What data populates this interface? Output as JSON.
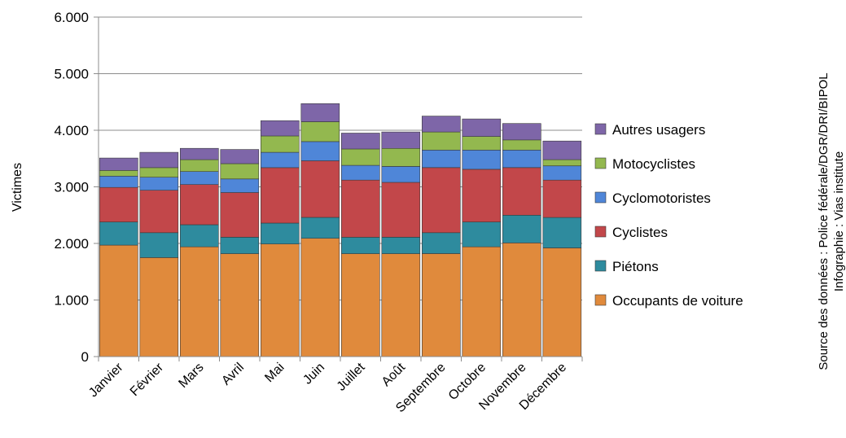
{
  "chart_data": {
    "type": "bar",
    "stacked": true,
    "categories": [
      "Janvier",
      "Février",
      "Mars",
      "Avril",
      "Mai",
      "Juin",
      "Juillet",
      "Août",
      "Septembre",
      "Octobre",
      "Novembre",
      "Décembre"
    ],
    "series": [
      {
        "name": "Occupants de voiture",
        "color": "#E08A3C",
        "values": [
          1970,
          1750,
          1940,
          1820,
          1990,
          2090,
          1820,
          1820,
          1820,
          1940,
          2010,
          1920
        ]
      },
      {
        "name": "Piétons",
        "color": "#2E8B9E",
        "values": [
          410,
          440,
          390,
          290,
          370,
          370,
          290,
          290,
          370,
          440,
          490,
          540
        ]
      },
      {
        "name": "Cyclistes",
        "color": "#C2474A",
        "values": [
          610,
          750,
          710,
          790,
          980,
          1000,
          1010,
          970,
          1150,
          930,
          840,
          660
        ]
      },
      {
        "name": "Cyclomotoristes",
        "color": "#4F86D8",
        "values": [
          200,
          230,
          230,
          240,
          270,
          340,
          260,
          280,
          310,
          340,
          310,
          250
        ]
      },
      {
        "name": "Motocyclistes",
        "color": "#93B84F",
        "values": [
          100,
          170,
          210,
          270,
          290,
          350,
          290,
          320,
          320,
          240,
          180,
          110
        ]
      },
      {
        "name": "Autres usagers",
        "color": "#7E66A8",
        "values": [
          220,
          270,
          200,
          250,
          270,
          320,
          280,
          290,
          280,
          310,
          290,
          330
        ]
      }
    ],
    "ylabel": "Victimes",
    "ylim": [
      0,
      6000
    ],
    "yticks": [
      0,
      1000,
      2000,
      3000,
      4000,
      5000,
      6000
    ],
    "ytick_labels": [
      "0",
      "1.000",
      "2.000",
      "3.000",
      "4.000",
      "5.000",
      "6.000"
    ],
    "grid": true,
    "legend_position": "right",
    "source_text_1": "Source des données : Police fédérale/DGR/DRI/BIPOL",
    "source_text_2": "Infographie : Vias institute"
  }
}
